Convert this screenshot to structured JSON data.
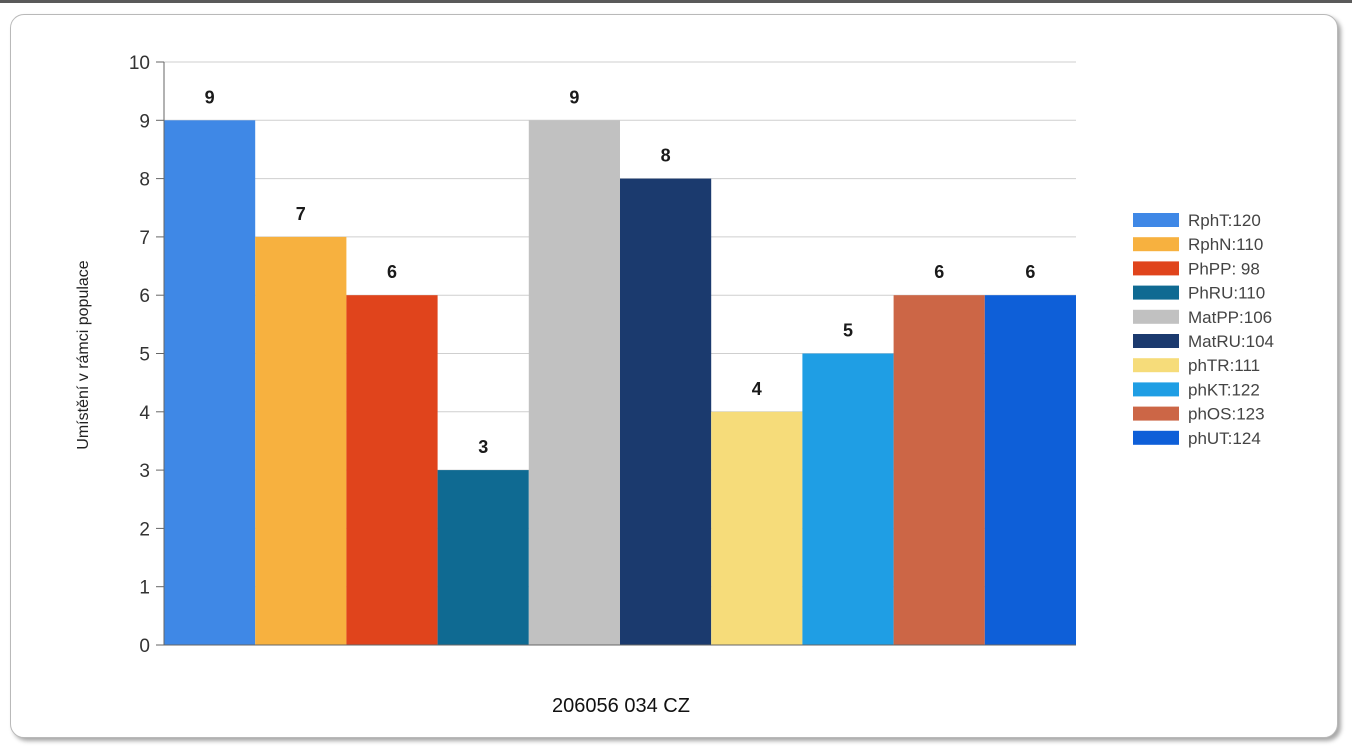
{
  "chart_data": {
    "type": "bar",
    "title": "",
    "xlabel": "206056 034 CZ",
    "ylabel": "Umístění v rámci populace",
    "ylim": [
      0,
      10
    ],
    "yticks": [
      0,
      1,
      2,
      3,
      4,
      5,
      6,
      7,
      8,
      9,
      10
    ],
    "grid": true,
    "legend_position": "right",
    "categories": [
      "RphT:120",
      "RphN:110",
      "PhPP: 98",
      "PhRU:110",
      "MatPP:106",
      "MatRU:104",
      "phTR:111",
      "phKT:122",
      "phOS:123",
      "phUT:124"
    ],
    "values": [
      9,
      7,
      6,
      3,
      9,
      8,
      4,
      5,
      6,
      6
    ],
    "colors": [
      "#3f88e6",
      "#f7b13f",
      "#e0441c",
      "#0f6a92",
      "#c1c1c1",
      "#1b3a6e",
      "#f6dc7a",
      "#1f9ee4",
      "#cc6646",
      "#0e5fd8"
    ]
  }
}
